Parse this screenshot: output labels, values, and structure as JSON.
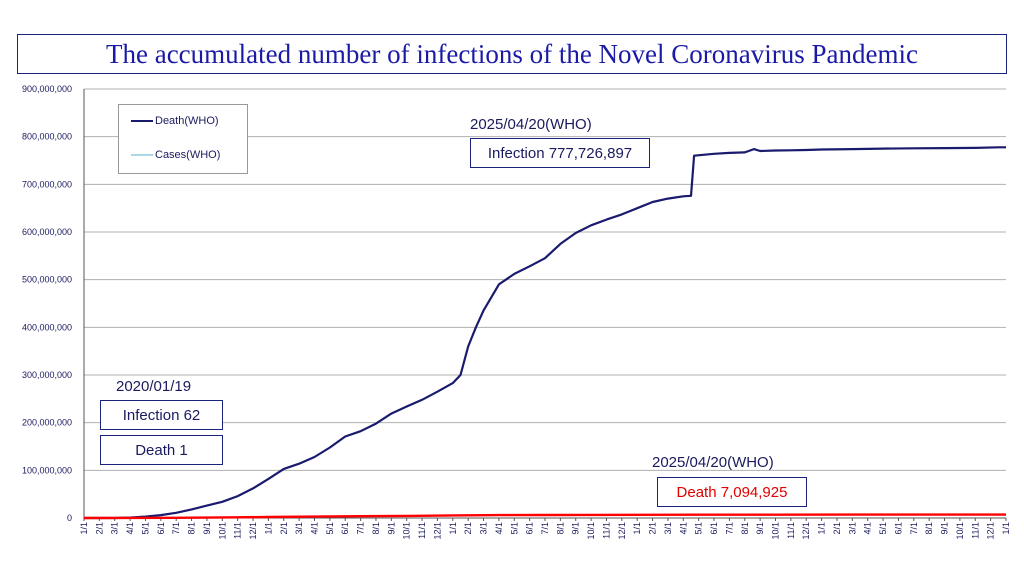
{
  "title": "The accumulated number of infections of the Novel Coronavirus Pandemic",
  "annotations": {
    "start_date": "2020/01/19",
    "start_infection": "Infection 62",
    "start_death": "Death 1",
    "end_date_top": "2025/04/20(WHO)",
    "end_infection": "Infection 777,726,897",
    "end_date_bottom": "2025/04/20(WHO)",
    "end_death": "Death  7,094,925"
  },
  "colors": {
    "cases": "#1a1a6e",
    "death": "#ff0000",
    "grid": "#b0b0b0",
    "legend_cases_swatch": "#add8e6",
    "legend_death_swatch": "#1a1a6e"
  },
  "chart_data": {
    "type": "line",
    "ylim": [
      0,
      900000000
    ],
    "yticks": [
      "0",
      "100,000,000",
      "200,000,000",
      "300,000,000",
      "400,000,000",
      "500,000,000",
      "600,000,000",
      "700,000,000",
      "800,000,000",
      "900,000,000"
    ],
    "xtick_labels": [
      "1/1",
      "2/1",
      "3/1",
      "4/1",
      "5/1",
      "6/1",
      "7/1",
      "8/1",
      "9/1",
      "10/1",
      "11/1",
      "12/1",
      "1/1",
      "2/1",
      "3/1",
      "4/1",
      "5/1",
      "6/1",
      "7/1",
      "8/1",
      "9/1",
      "10/1",
      "11/1",
      "12/1",
      "1/1",
      "2/1",
      "3/1",
      "4/1",
      "5/1",
      "6/1",
      "7/1",
      "8/1",
      "9/1",
      "10/1",
      "11/1",
      "12/1",
      "1/1",
      "2/1",
      "3/1",
      "4/1",
      "5/1",
      "6/1",
      "7/1",
      "8/1",
      "9/1",
      "10/1",
      "11/1",
      "12/1",
      "1/1",
      "2/1",
      "3/1",
      "4/1",
      "5/1",
      "6/1",
      "7/1",
      "8/1",
      "9/1",
      "10/1",
      "11/1",
      "12/1",
      "1/1"
    ],
    "grid": true,
    "legend": {
      "position": "top-left",
      "entries": [
        "Death(WHO)",
        "Cases(WHO)"
      ]
    },
    "series": [
      {
        "name": "Cases(WHO)",
        "points": [
          [
            0,
            0
          ],
          [
            1,
            0
          ],
          [
            2,
            100000
          ],
          [
            3,
            800000
          ],
          [
            4,
            3000000
          ],
          [
            5,
            6000000
          ],
          [
            6,
            11000000
          ],
          [
            7,
            18000000
          ],
          [
            8,
            26000000
          ],
          [
            9,
            34000000
          ],
          [
            10,
            46000000
          ],
          [
            11,
            62000000
          ],
          [
            12,
            82000000
          ],
          [
            13,
            103000000
          ],
          [
            14,
            114000000
          ],
          [
            15,
            128000000
          ],
          [
            16,
            148000000
          ],
          [
            17,
            171000000
          ],
          [
            18,
            182000000
          ],
          [
            19,
            198000000
          ],
          [
            20,
            219000000
          ],
          [
            21,
            234000000
          ],
          [
            22,
            248000000
          ],
          [
            23,
            265000000
          ],
          [
            24,
            283000000
          ],
          [
            24.5,
            300000000
          ],
          [
            25,
            360000000
          ],
          [
            25.5,
            400000000
          ],
          [
            26,
            435000000
          ],
          [
            27,
            490000000
          ],
          [
            28,
            512000000
          ],
          [
            29,
            528000000
          ],
          [
            30,
            545000000
          ],
          [
            31,
            575000000
          ],
          [
            32,
            598000000
          ],
          [
            33,
            614000000
          ],
          [
            34,
            626000000
          ],
          [
            35,
            637000000
          ],
          [
            36,
            650000000
          ],
          [
            37,
            663000000
          ],
          [
            38,
            670000000
          ],
          [
            39,
            675000000
          ],
          [
            39.5,
            676000000
          ],
          [
            39.7,
            760000000
          ],
          [
            41,
            764000000
          ],
          [
            42,
            766000000
          ],
          [
            43,
            767000000
          ],
          [
            43.6,
            774000000
          ],
          [
            44,
            770000000
          ],
          [
            45,
            771000000
          ],
          [
            46,
            771500000
          ],
          [
            47,
            772000000
          ],
          [
            48,
            773000000
          ],
          [
            50,
            774000000
          ],
          [
            52,
            775000000
          ],
          [
            54,
            775500000
          ],
          [
            56,
            776000000
          ],
          [
            58,
            776500000
          ],
          [
            59.5,
            777726897
          ],
          [
            60,
            777726897
          ]
        ]
      },
      {
        "name": "Death(WHO)",
        "points": [
          [
            0,
            0
          ],
          [
            6,
            500000
          ],
          [
            10,
            1400000
          ],
          [
            12,
            2100000
          ],
          [
            15,
            3000000
          ],
          [
            18,
            3800000
          ],
          [
            21,
            4500000
          ],
          [
            24,
            5400000
          ],
          [
            27,
            6000000
          ],
          [
            30,
            6300000
          ],
          [
            33,
            6550000
          ],
          [
            36,
            6700000
          ],
          [
            40,
            6900000
          ],
          [
            45,
            7000000
          ],
          [
            50,
            7050000
          ],
          [
            55,
            7080000
          ],
          [
            59.5,
            7094925
          ],
          [
            60,
            7094925
          ]
        ]
      }
    ]
  }
}
